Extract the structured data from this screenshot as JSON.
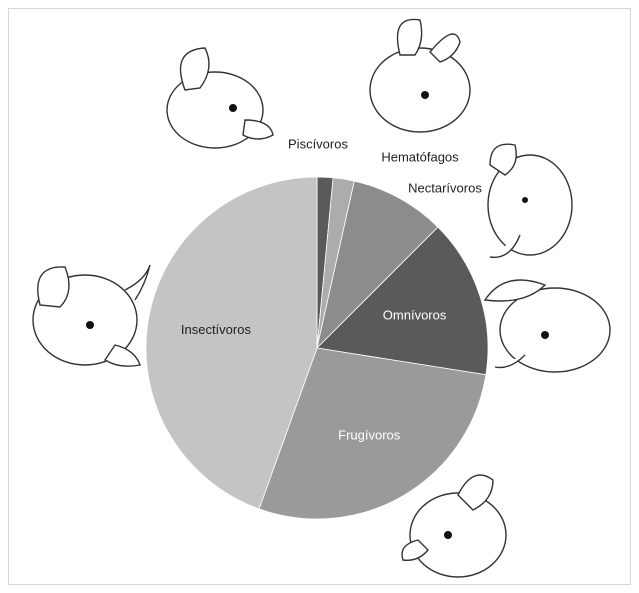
{
  "chart_data": {
    "type": "pie",
    "categories": [
      "Piscívoros",
      "Hematófagos",
      "Nectarívoros",
      "Omnívoros",
      "Frugívoros",
      "Insectívoros"
    ],
    "values": [
      1.5,
      2,
      9,
      15,
      28,
      44.5
    ],
    "colors": [
      "#5a5a5a",
      "#acacac",
      "#8c8c8c",
      "#5a5a5a",
      "#9a9a9a",
      "#c4c4c4"
    ]
  }
}
